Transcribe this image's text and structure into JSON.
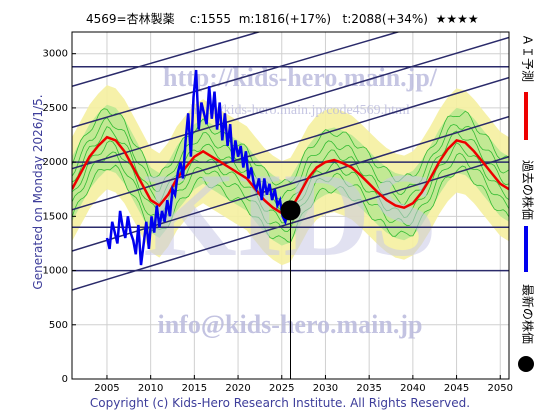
{
  "header": {
    "code_name": "4569=杏林製薬",
    "current": "c:1555",
    "mid": "m:1816(+17%)",
    "target": "t:2088(+34%)",
    "rating": "★★★★"
  },
  "side_label": "Generated on Monday 2026/1/5.",
  "copyright": "Copyright (c) Kids-Hero Research Institute. All Rights Reserved.",
  "watermarks": {
    "url1": "http://kids-hero.main.jp/",
    "url2": "http://kids-hero.main.jp/code4569.html",
    "email": "info@kids-hero.main.jp",
    "big": "KIDS"
  },
  "legend": {
    "ai_forecast": "ＡＩ予測",
    "past_price": "過去の株価",
    "latest_price": "最新の株価"
  },
  "colors": {
    "ai_forecast": "#ee0000",
    "past_price": "#0000ee",
    "band_outer": "#f5f0a0",
    "band_inner": "#b8e890",
    "band_lines": "#33bb33",
    "channel": "#2a2a6a"
  },
  "chart_data": {
    "type": "line",
    "xlim": [
      2001,
      2051
    ],
    "ylim": [
      0,
      3200
    ],
    "x_ticks": [
      2005,
      2010,
      2015,
      2020,
      2025,
      2030,
      2035,
      2040,
      2045,
      2050
    ],
    "y_ticks": [
      0,
      500,
      1000,
      1500,
      2000,
      2500,
      3000
    ],
    "grid": true,
    "horizontal_levels": [
      1000,
      1400,
      2000,
      2880
    ],
    "channel_lines": [
      {
        "x": [
          2001,
          2051
        ],
        "y": [
          820,
          2050
        ]
      },
      {
        "x": [
          2001,
          2051
        ],
        "y": [
          1180,
          2420
        ]
      },
      {
        "x": [
          2001,
          2051
        ],
        "y": [
          1560,
          2780
        ]
      },
      {
        "x": [
          2001,
          2051
        ],
        "y": [
          1940,
          3150
        ]
      },
      {
        "x": [
          2001,
          2051
        ],
        "y": [
          2320,
          3500
        ]
      },
      {
        "x": [
          2001,
          2051
        ],
        "y": [
          2700,
          3870
        ]
      }
    ],
    "latest": {
      "x": 2026.0,
      "y": 1555
    },
    "vertical_marker_x": 2026.0,
    "series": [
      {
        "name": "過去の株価",
        "x": [
          2005.0,
          2005.3,
          2005.6,
          2005.9,
          2006.2,
          2006.5,
          2006.8,
          2007.1,
          2007.4,
          2007.7,
          2008.0,
          2008.3,
          2008.6,
          2008.9,
          2009.2,
          2009.5,
          2009.8,
          2010.1,
          2010.4,
          2010.7,
          2011.0,
          2011.3,
          2011.6,
          2011.9,
          2012.2,
          2012.5,
          2012.8,
          2013.1,
          2013.4,
          2013.7,
          2014.0,
          2014.3,
          2014.6,
          2014.9,
          2015.2,
          2015.5,
          2015.8,
          2016.1,
          2016.4,
          2016.7,
          2017.0,
          2017.3,
          2017.6,
          2017.9,
          2018.2,
          2018.5,
          2018.8,
          2019.1,
          2019.4,
          2019.7,
          2020.0,
          2020.3,
          2020.6,
          2020.9,
          2021.2,
          2021.5,
          2021.8,
          2022.1,
          2022.4,
          2022.7,
          2023.0,
          2023.3,
          2023.6,
          2023.9,
          2024.2,
          2024.5,
          2024.8,
          2025.1,
          2025.4,
          2025.7,
          2026.0
        ],
        "y": [
          1300,
          1200,
          1450,
          1350,
          1250,
          1550,
          1400,
          1300,
          1500,
          1350,
          1280,
          1150,
          1420,
          1050,
          1250,
          1450,
          1200,
          1500,
          1350,
          1600,
          1400,
          1550,
          1450,
          1650,
          1500,
          1750,
          1700,
          1900,
          2000,
          1850,
          2200,
          2450,
          2050,
          2600,
          2850,
          2300,
          2550,
          2450,
          2350,
          2700,
          2400,
          2650,
          2300,
          2550,
          2200,
          2450,
          2150,
          2350,
          2000,
          2200,
          2050,
          2150,
          1950,
          2100,
          1850,
          1950,
          1800,
          1750,
          1850,
          1650,
          1850,
          1700,
          1800,
          1650,
          1750,
          1600,
          1650,
          1500,
          1450,
          1550,
          1555
        ]
      },
      {
        "name": "ＡＩ予測",
        "x": [
          2001,
          2002,
          2003,
          2004,
          2005,
          2006,
          2007,
          2008,
          2009,
          2010,
          2011,
          2012,
          2013,
          2014,
          2015,
          2016,
          2017,
          2018,
          2019,
          2020,
          2021,
          2022,
          2023,
          2024,
          2025,
          2026,
          2027,
          2028,
          2029,
          2030,
          2031,
          2032,
          2033,
          2034,
          2035,
          2036,
          2037,
          2038,
          2039,
          2040,
          2041,
          2042,
          2043,
          2044,
          2045,
          2046,
          2047,
          2048,
          2049,
          2050,
          2051
        ],
        "y": [
          1750,
          1900,
          2050,
          2150,
          2230,
          2200,
          2100,
          1950,
          1800,
          1650,
          1600,
          1700,
          1850,
          1950,
          2050,
          2100,
          2050,
          2000,
          1950,
          1900,
          1850,
          1750,
          1650,
          1580,
          1530,
          1560,
          1700,
          1850,
          1950,
          2000,
          2020,
          1990,
          1950,
          1880,
          1800,
          1720,
          1650,
          1600,
          1580,
          1620,
          1720,
          1850,
          2000,
          2120,
          2200,
          2180,
          2100,
          2000,
          1900,
          1800,
          1750
        ]
      }
    ]
  }
}
